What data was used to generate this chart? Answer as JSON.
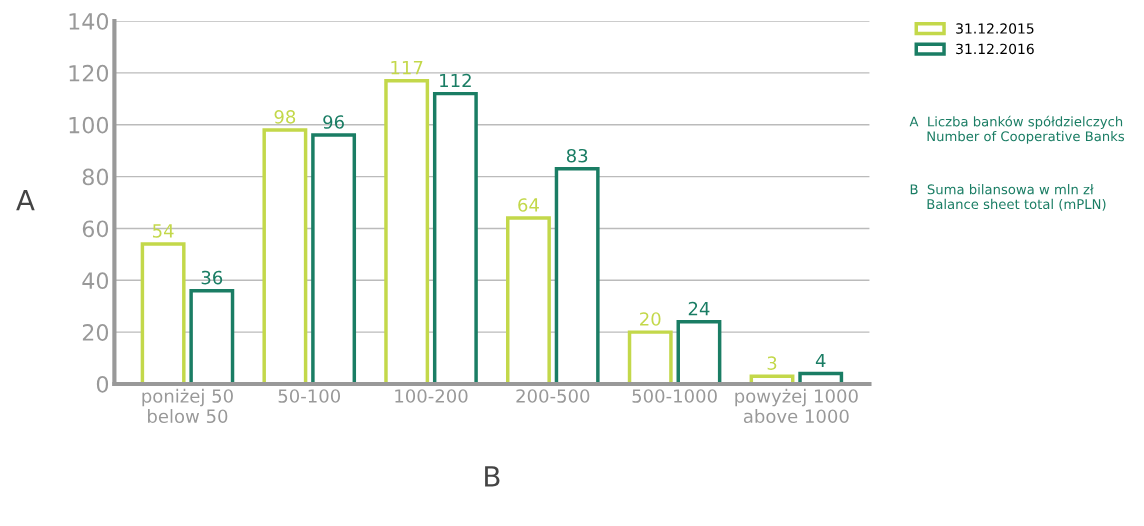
{
  "chart_data": {
    "type": "bar",
    "xlabel": "B",
    "ylabel": "A",
    "categories": [
      "poniżej 50\nbelow 50",
      "50-100",
      "100-200",
      "200-500",
      "500-1000",
      "powyżej 1000\nabove 1000"
    ],
    "series": [
      {
        "name": "31.12.2015",
        "color": "#c3d84a",
        "values": [
          54,
          98,
          117,
          64,
          20,
          3
        ]
      },
      {
        "name": "31.12.2016",
        "color": "#1a7d64",
        "values": [
          36,
          96,
          112,
          83,
          24,
          4
        ]
      }
    ],
    "ylim": [
      0,
      140
    ],
    "yticks": [
      0,
      20,
      40,
      60,
      80,
      100,
      120,
      140
    ],
    "grid": "y",
    "legend": "top right",
    "data_labels": true,
    "annotations": [
      "A  Liczba banków spółdzielczych\n    Number of Cooperative Banks",
      "B  Suma bilansowa w mln zł\n    Balance sheet total (mPLN)"
    ]
  }
}
